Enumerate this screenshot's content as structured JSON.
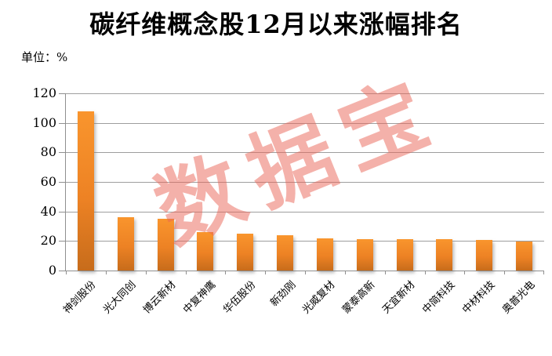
{
  "header": {
    "title": "碳纤维概念股12月以来涨幅排名",
    "unit_label": "单位：%"
  },
  "watermark": {
    "text": "数据宝"
  },
  "colors": {
    "bar_top": "#F9952D",
    "bar_mid": "#ED8224",
    "bar_bottom": "#C76C1B",
    "gridline": "#9E9E9E",
    "axis": "#8F8F8F",
    "watermark": "rgba(233,99,86,0.5)",
    "text": "#000000",
    "background": "#FFFFFF"
  },
  "chart_data": {
    "type": "bar",
    "title": "碳纤维概念股12月以来涨幅排名",
    "unit": "%",
    "categories": [
      "神剑股份",
      "光大同创",
      "博云新材",
      "中复神鹰",
      "华伍股份",
      "新劲刚",
      "光威复材",
      "蒙泰高新",
      "天宜新材",
      "中简科技",
      "中材科技",
      "奥普光电"
    ],
    "values": [
      108,
      36,
      35,
      26,
      25,
      24,
      22,
      21.5,
      21.3,
      21.2,
      20.5,
      19.5
    ],
    "xlabel": "",
    "ylabel": "",
    "ylim": [
      0,
      120
    ],
    "yticks": [
      0,
      20,
      40,
      60,
      80,
      100,
      120
    ],
    "grid": true,
    "legend_position": "none",
    "x_tick_label_rotation_deg": -45
  }
}
